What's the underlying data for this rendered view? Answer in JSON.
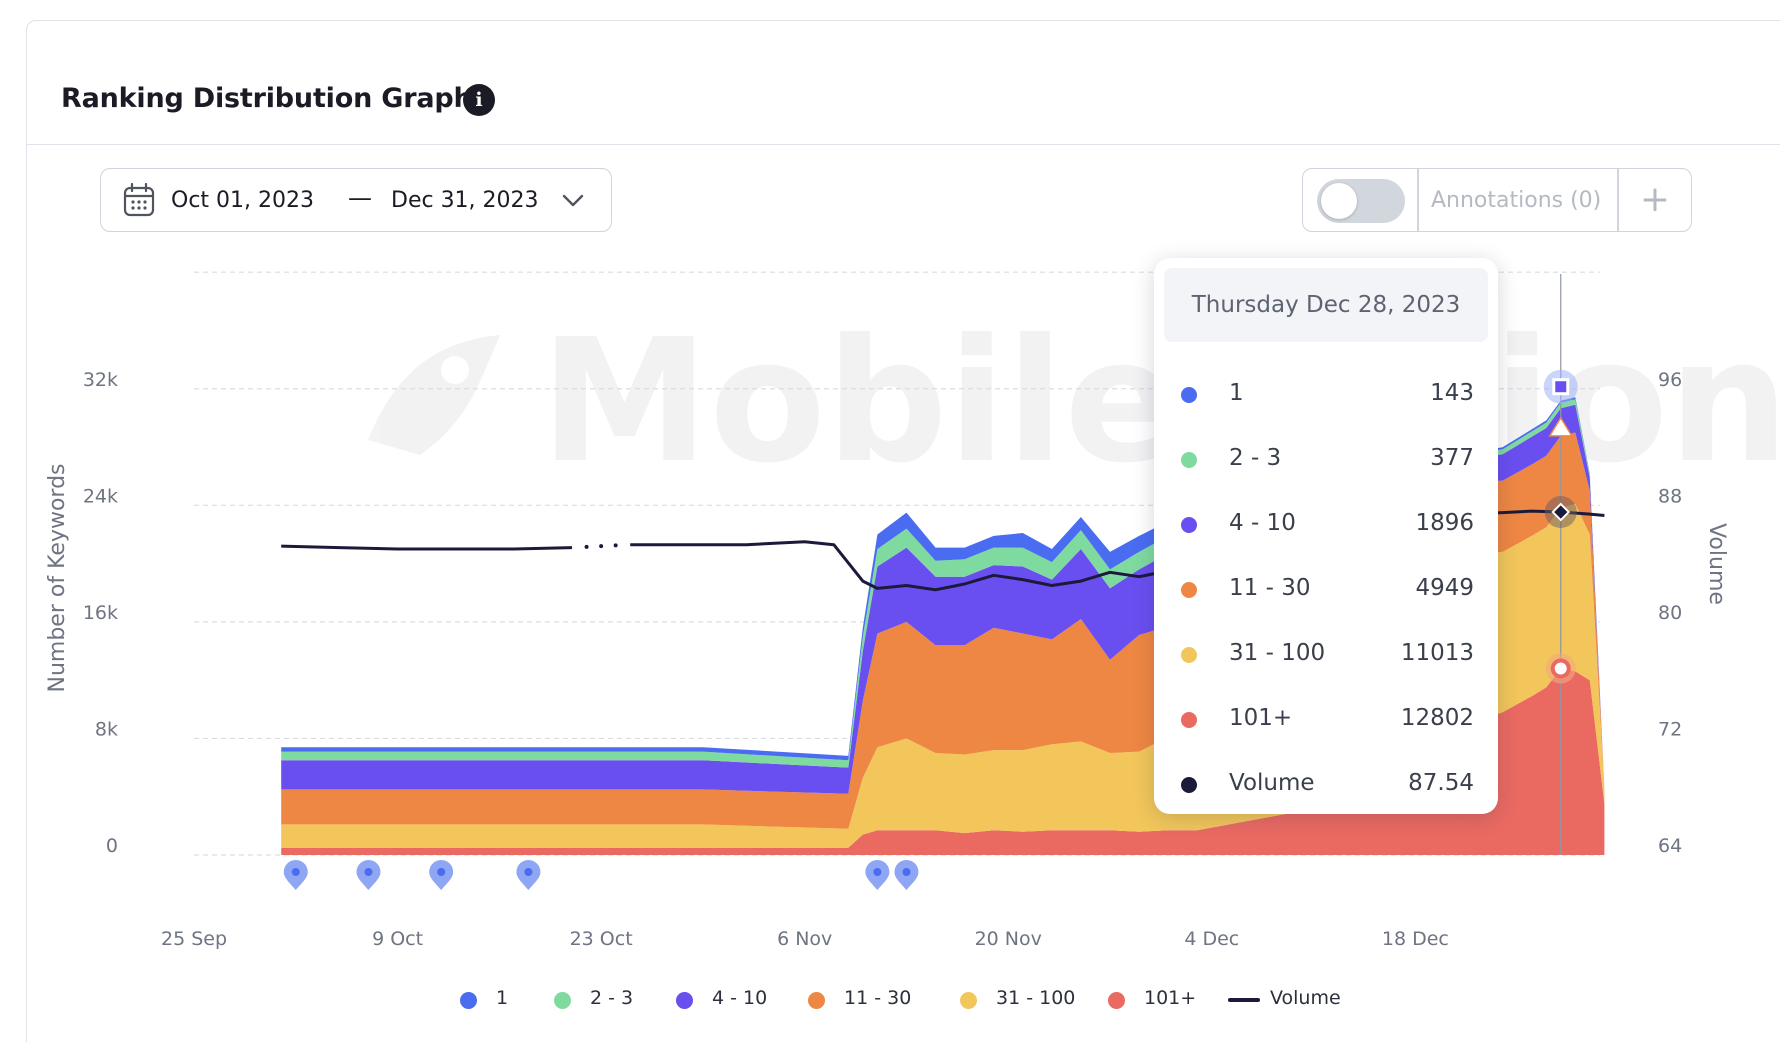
{
  "header": {
    "title": "Ranking Distribution Graph",
    "info_icon": "i"
  },
  "date_range": {
    "start": "Oct 01, 2023",
    "separator": "—",
    "end": "Dec 31, 2023"
  },
  "annotations": {
    "label": "Annotations (0)",
    "add": "+"
  },
  "tooltip": {
    "date": "Thursday Dec 28, 2023",
    "rows": [
      {
        "name": "1",
        "value": "143",
        "color": "#4a6cf0"
      },
      {
        "name": "2 - 3",
        "value": "377",
        "color": "#7fdaa0"
      },
      {
        "name": "4 - 10",
        "value": "1896",
        "color": "#6a4ff0"
      },
      {
        "name": "11 - 30",
        "value": "4949",
        "color": "#ee8743"
      },
      {
        "name": "31 - 100",
        "value": "11013",
        "color": "#f2c65b"
      },
      {
        "name": "101+",
        "value": "12802",
        "color": "#ea6a62"
      },
      {
        "name": "Volume",
        "value": "87.54",
        "color": "#1c1a3a"
      }
    ]
  },
  "legend": [
    {
      "label": "1",
      "color": "#4a6cf0"
    },
    {
      "label": "2 - 3",
      "color": "#7fdaa0"
    },
    {
      "label": "4 - 10",
      "color": "#6a4ff0"
    },
    {
      "label": "11 - 30",
      "color": "#ee8743"
    },
    {
      "label": "31 - 100",
      "color": "#f2c65b"
    },
    {
      "label": "101+",
      "color": "#ea6a62"
    },
    {
      "label": "Volume",
      "color": "#1c1a3a"
    }
  ],
  "chart_data": {
    "type": "area",
    "stacked": true,
    "ylabel": "Number of Keywords",
    "y2label": "Volume",
    "ylim": [
      0,
      40000
    ],
    "y2lim": [
      64,
      104
    ],
    "y_ticks": [
      "0",
      "8k",
      "16k",
      "24k",
      "32k"
    ],
    "y2_ticks": [
      "64",
      "72",
      "80",
      "88",
      "96"
    ],
    "x_ticks": [
      "25 Sep",
      "9 Oct",
      "23 Oct",
      "6 Nov",
      "20 Nov",
      "4 Dec",
      "18 Dec"
    ],
    "x_start": "2023-09-25",
    "x": [
      "2023-10-01",
      "2023-10-15",
      "2023-10-30",
      "2023-11-09",
      "2023-11-10",
      "2023-11-11",
      "2023-11-13",
      "2023-11-15",
      "2023-11-17",
      "2023-11-19",
      "2023-11-21",
      "2023-11-23",
      "2023-11-25",
      "2023-11-27",
      "2023-11-29",
      "2023-12-01",
      "2023-12-03",
      "2023-12-21",
      "2023-12-22",
      "2023-12-24",
      "2023-12-26",
      "2023-12-27",
      "2023-12-28",
      "2023-12-29",
      "2023-12-30",
      "2023-12-31"
    ],
    "series": [
      {
        "name": "101+",
        "color": "#ea6a62",
        "values": [
          500,
          500,
          500,
          500,
          1400,
          1700,
          1700,
          1700,
          1500,
          1700,
          1600,
          1700,
          1700,
          1700,
          1600,
          1700,
          1700,
          5000,
          9200,
          9800,
          10900,
          11500,
          12802,
          12600,
          12000,
          3500
        ]
      },
      {
        "name": "31 - 100",
        "color": "#f2c65b",
        "values": [
          1600,
          1600,
          1600,
          1300,
          3900,
          5700,
          6300,
          5300,
          5400,
          5500,
          5600,
          5900,
          6100,
          5300,
          5500,
          6400,
          6000,
          9000,
          11500,
          11000,
          11000,
          11000,
          11013,
          11500,
          10000,
          1000
        ]
      },
      {
        "name": "11 - 30",
        "color": "#ee8743",
        "values": [
          2400,
          2400,
          2400,
          2400,
          5300,
          7800,
          8000,
          7400,
          7500,
          8400,
          8000,
          7200,
          8400,
          6400,
          8000,
          7600,
          7000,
          4900,
          4900,
          4900,
          4900,
          4900,
          4949,
          4900,
          3000,
          0
        ]
      },
      {
        "name": "4 - 10",
        "color": "#6a4ff0",
        "values": [
          2000,
          2000,
          2000,
          1800,
          3400,
          4600,
          5100,
          4700,
          4700,
          4300,
          4600,
          4100,
          4800,
          4900,
          4500,
          5000,
          4900,
          1500,
          1600,
          1800,
          1900,
          1900,
          1896,
          1900,
          900,
          0
        ]
      },
      {
        "name": "2 - 3",
        "color": "#7fdaa0",
        "values": [
          600,
          600,
          600,
          500,
          1000,
          1200,
          1300,
          1100,
          1200,
          1200,
          1300,
          1200,
          1300,
          1300,
          1200,
          1200,
          1300,
          300,
          330,
          350,
          370,
          380,
          377,
          380,
          200,
          0
        ]
      },
      {
        "name": "1",
        "color": "#4a6cf0",
        "values": [
          300,
          300,
          300,
          300,
          600,
          1000,
          1100,
          900,
          800,
          800,
          1000,
          900,
          900,
          1200,
          1100,
          1000,
          1100,
          100,
          120,
          130,
          140,
          145,
          143,
          140,
          80,
          0
        ]
      }
    ],
    "volume": {
      "name": "Volume",
      "color": "#1c1a3a",
      "x": [
        "2023-10-01",
        "2023-10-05",
        "2023-10-09",
        "2023-10-13",
        "2023-10-17",
        "2023-10-21",
        "2023-10-25",
        "2023-10-29",
        "2023-11-02",
        "2023-11-06",
        "2023-11-08",
        "2023-11-10",
        "2023-11-11",
        "2023-11-13",
        "2023-11-15",
        "2023-11-17",
        "2023-11-19",
        "2023-11-21",
        "2023-11-23",
        "2023-11-25",
        "2023-11-27",
        "2023-11-29",
        "2023-12-01",
        "2023-12-03",
        "2023-12-21",
        "2023-12-24",
        "2023-12-26",
        "2023-12-28",
        "2023-12-30",
        "2023-12-31"
      ],
      "values": [
        85.2,
        85.1,
        85.0,
        85.0,
        85.0,
        85.1,
        85.3,
        85.3,
        85.3,
        85.5,
        85.3,
        82.8,
        82.3,
        82.5,
        82.2,
        82.6,
        83.2,
        82.9,
        82.5,
        82.8,
        83.4,
        83.1,
        83.5,
        83.1,
        87.4,
        87.5,
        87.6,
        87.54,
        87.4,
        87.3
      ],
      "gap": [
        "2023-10-22",
        "2023-10-24"
      ]
    },
    "annotation_markers": [
      "2023-10-02",
      "2023-10-07",
      "2023-10-12",
      "2023-10-18",
      "2023-11-11",
      "2023-11-13"
    ],
    "hover_date": "2023-12-28",
    "grid": true,
    "legend_position": "bottom"
  }
}
